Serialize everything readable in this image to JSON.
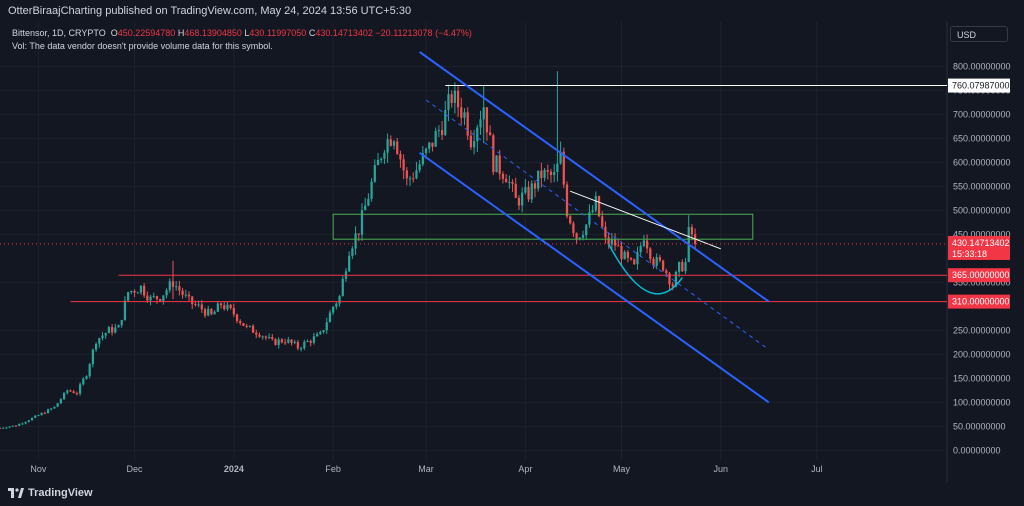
{
  "header": {
    "published_text": "OtterBiraajCharting published on TradingView.com, May 24, 2024 13:56 UTC+5:30"
  },
  "legend": {
    "symbol": "Bittensor, 1D, CRYPTO",
    "open_label": "O",
    "open": "450.22594780",
    "high_label": "H",
    "high": "468.13904850",
    "low_label": "L",
    "low": "430.11997050",
    "close_label": "C",
    "close": "430.14713402",
    "change": "−20.11213078 (−4.47%)",
    "volume_note": "Vol: The data vendor doesn't provide volume data for this symbol."
  },
  "currency_button": "USD",
  "footer": {
    "brand": "TradingView"
  },
  "colors": {
    "background": "#131722",
    "up": "#26a69a",
    "down": "#ef5350",
    "channel": "#2962ff",
    "support": "#f23645",
    "box": "#4caf50",
    "cup": "#00bcd4",
    "resistance": "#ffffff",
    "price_label": "#f23645"
  },
  "chart_data": {
    "type": "candlestick",
    "ylim": [
      -20,
      830
    ],
    "y_ticks": [
      {
        "value": 800,
        "label": "800.00000000"
      },
      {
        "value": 750,
        "label": "750.00000000"
      },
      {
        "value": 700,
        "label": "700.00000000"
      },
      {
        "value": 650,
        "label": "650.00000000"
      },
      {
        "value": 600,
        "label": "600.00000000"
      },
      {
        "value": 550,
        "label": "550.00000000"
      },
      {
        "value": 500,
        "label": "500.00000000"
      },
      {
        "value": 450,
        "label": "450.00000000"
      },
      {
        "value": 350,
        "label": "350.00000000"
      },
      {
        "value": 250,
        "label": "250.00000000"
      },
      {
        "value": 200,
        "label": "200.00000000"
      },
      {
        "value": 150,
        "label": "150.00000000"
      },
      {
        "value": 100,
        "label": "100.00000000"
      },
      {
        "value": 50,
        "label": "50.00000000"
      },
      {
        "value": 0,
        "label": "0.00000000"
      }
    ],
    "x_ticks": [
      {
        "date": "2023-11-01",
        "label": "Nov"
      },
      {
        "date": "2023-12-01",
        "label": "Dec"
      },
      {
        "date": "2024-01-01",
        "label": "2024"
      },
      {
        "date": "2024-02-01",
        "label": "Feb"
      },
      {
        "date": "2024-03-01",
        "label": "Mar"
      },
      {
        "date": "2024-04-01",
        "label": "Apr"
      },
      {
        "date": "2024-05-01",
        "label": "May"
      },
      {
        "date": "2024-06-01",
        "label": "Jun"
      },
      {
        "date": "2024-07-01",
        "label": "Jul"
      }
    ],
    "x_range": [
      "2023-10-20",
      "2024-08-10"
    ],
    "start_date": "2023-10-20",
    "end_date": "2024-05-24",
    "close_path": [
      [
        "2023-10-20",
        47
      ],
      [
        "2023-10-25",
        52
      ],
      [
        "2023-10-31",
        70
      ],
      [
        "2023-11-06",
        90
      ],
      [
        "2023-11-10",
        125
      ],
      [
        "2023-11-13",
        120
      ],
      [
        "2023-11-16",
        160
      ],
      [
        "2023-11-19",
        230
      ],
      [
        "2023-11-23",
        250
      ],
      [
        "2023-11-26",
        255
      ],
      [
        "2023-11-29",
        330
      ],
      [
        "2023-12-03",
        340
      ],
      [
        "2023-12-06",
        315
      ],
      [
        "2023-12-09",
        320
      ],
      [
        "2023-12-13",
        350
      ],
      [
        "2023-12-18",
        310
      ],
      [
        "2023-12-22",
        295
      ],
      [
        "2023-12-25",
        280
      ],
      [
        "2023-12-28",
        305
      ],
      [
        "2024-01-01",
        285
      ],
      [
        "2024-01-05",
        255
      ],
      [
        "2024-01-09",
        245
      ],
      [
        "2024-01-13",
        225
      ],
      [
        "2024-01-17",
        230
      ],
      [
        "2024-01-21",
        215
      ],
      [
        "2024-01-25",
        230
      ],
      [
        "2024-01-28",
        240
      ],
      [
        "2024-02-01",
        300
      ],
      [
        "2024-02-03",
        320
      ],
      [
        "2024-02-06",
        420
      ],
      [
        "2024-02-09",
        460
      ],
      [
        "2024-02-13",
        555
      ],
      [
        "2024-02-17",
        640
      ],
      [
        "2024-02-20",
        660
      ],
      [
        "2024-02-24",
        560
      ],
      [
        "2024-02-27",
        585
      ],
      [
        "2024-03-02",
        630
      ],
      [
        "2024-03-06",
        680
      ],
      [
        "2024-03-09",
        738
      ],
      [
        "2024-03-13",
        700
      ],
      [
        "2024-03-15",
        650
      ],
      [
        "2024-03-19",
        720
      ],
      [
        "2024-03-22",
        600
      ],
      [
        "2024-03-26",
        575
      ],
      [
        "2024-03-29",
        520
      ],
      [
        "2024-04-02",
        535
      ],
      [
        "2024-04-06",
        575
      ],
      [
        "2024-04-10",
        570
      ],
      [
        "2024-04-12",
        610
      ],
      [
        "2024-04-14",
        500
      ],
      [
        "2024-04-17",
        445
      ],
      [
        "2024-04-20",
        470
      ],
      [
        "2024-04-23",
        515
      ],
      [
        "2024-04-26",
        435
      ],
      [
        "2024-04-29",
        430
      ],
      [
        "2024-05-02",
        400
      ],
      [
        "2024-05-05",
        380
      ],
      [
        "2024-05-08",
        450
      ],
      [
        "2024-05-11",
        395
      ],
      [
        "2024-05-14",
        385
      ],
      [
        "2024-05-17",
        345
      ],
      [
        "2024-05-19",
        380
      ],
      [
        "2024-05-21",
        390
      ],
      [
        "2024-05-22",
        452
      ],
      [
        "2024-05-23",
        450
      ],
      [
        "2024-05-24",
        430
      ]
    ],
    "wicks": [
      {
        "date": "2024-04-11",
        "high": 790,
        "low": 560
      },
      {
        "date": "2023-12-13",
        "high": 395,
        "low": 315
      },
      {
        "date": "2024-03-19",
        "high": 760,
        "low": 640
      },
      {
        "date": "2024-05-22",
        "high": 490,
        "low": 400
      }
    ],
    "last_price": {
      "value": 430.14713402,
      "label": "430.14713402",
      "countdown": "15:33:18"
    },
    "horizontal_levels": [
      {
        "value": 760.07987,
        "label": "760.07987000",
        "start": "2024-03-07",
        "color": "#ffffff"
      },
      {
        "value": 365,
        "label": "365.00000000",
        "start": "2023-11-26",
        "color": "#f23645"
      },
      {
        "value": 310,
        "label": "310.00000000",
        "start": "2023-11-11",
        "color": "#f23645"
      }
    ],
    "zone_box": {
      "date_from": "2024-02-01",
      "date_to": "2024-06-11",
      "top": 492,
      "bottom": 440
    },
    "channel_upper": [
      [
        "2024-02-28",
        830
      ],
      [
        "2024-06-16",
        310
      ]
    ],
    "channel_lower": [
      [
        "2024-02-28",
        620
      ],
      [
        "2024-06-16",
        100
      ]
    ],
    "channel_mid": [
      [
        "2024-03-01",
        730
      ],
      [
        "2024-06-16",
        210
      ]
    ],
    "resistance_line": [
      [
        "2024-04-15",
        540
      ],
      [
        "2024-06-01",
        420
      ]
    ],
    "cup_curve": [
      [
        "2024-04-27",
        430
      ],
      [
        "2024-05-10",
        350
      ],
      [
        "2024-05-20",
        360
      ]
    ]
  }
}
